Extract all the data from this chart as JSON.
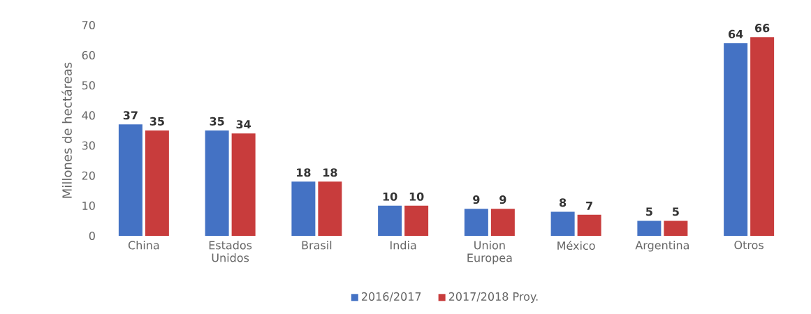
{
  "chart_data": {
    "type": "bar",
    "ylabel": "Millones de hectáreas",
    "categories": [
      "China",
      "Estados Unidos",
      "Brasil",
      "India",
      "Union Europea",
      "México",
      "Argentina",
      "Otros"
    ],
    "series": [
      {
        "name": "2016/2017",
        "color": "#4472c4",
        "values": [
          37,
          35,
          18,
          10,
          9,
          8,
          5,
          64
        ]
      },
      {
        "name": "2017/2018 Proy.",
        "color": "#c83c3c",
        "values": [
          35,
          34,
          18,
          10,
          9,
          7,
          5,
          66
        ]
      }
    ],
    "ylim": [
      0,
      70
    ],
    "yticks": [
      0,
      10,
      20,
      30,
      40,
      50,
      60,
      70
    ],
    "data_labels": true,
    "legend": "bottom"
  }
}
